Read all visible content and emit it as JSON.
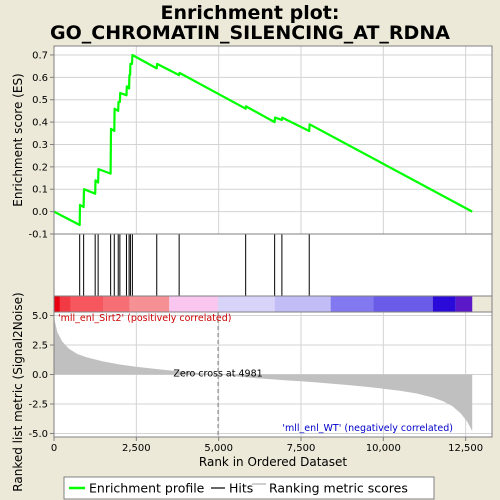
{
  "title_line1": "Enrichment plot:",
  "title_line2": "GO_CHROMATIN_SILENCING_AT_RDNA",
  "chart_data": {
    "type": "line",
    "title": "Enrichment plot: GO_CHROMATIN_SILENCING_AT_RDNA",
    "xlabel": "Rank in Ordered Dataset",
    "xlim": [
      0,
      13300
    ],
    "x_ticks": [
      0,
      2500,
      5000,
      7500,
      10000,
      12500
    ],
    "x_tick_labels": [
      "0",
      "2,500",
      "5,000",
      "7,500",
      "10,000",
      "12,500"
    ],
    "es_panel": {
      "ylabel": "Enrichment score (ES)",
      "ylim": [
        -0.1,
        0.74
      ],
      "y_ticks": [
        -0.1,
        0.0,
        0.1,
        0.2,
        0.3,
        0.4,
        0.5,
        0.6,
        0.7
      ],
      "y_tick_labels": [
        "-0.1",
        "0.0",
        "0.1",
        "0.2",
        "0.3",
        "0.4",
        "0.5",
        "0.6",
        "0.7"
      ],
      "series_name": "Enrichment profile",
      "color": "#00ff00",
      "points": [
        [
          0,
          0.0
        ],
        [
          780,
          -0.06
        ],
        [
          790,
          0.03
        ],
        [
          900,
          0.02
        ],
        [
          910,
          0.1
        ],
        [
          1250,
          0.08
        ],
        [
          1260,
          0.14
        ],
        [
          1340,
          0.13
        ],
        [
          1350,
          0.19
        ],
        [
          1720,
          0.17
        ],
        [
          1730,
          0.37
        ],
        [
          1830,
          0.36
        ],
        [
          1840,
          0.46
        ],
        [
          1950,
          0.45
        ],
        [
          1960,
          0.49
        ],
        [
          2000,
          0.49
        ],
        [
          2010,
          0.53
        ],
        [
          2200,
          0.52
        ],
        [
          2210,
          0.56
        ],
        [
          2280,
          0.55
        ],
        [
          2290,
          0.61
        ],
        [
          2310,
          0.61
        ],
        [
          2320,
          0.66
        ],
        [
          2370,
          0.66
        ],
        [
          2380,
          0.7
        ],
        [
          3120,
          0.64
        ],
        [
          3130,
          0.66
        ],
        [
          3800,
          0.61
        ],
        [
          3810,
          0.62
        ],
        [
          5820,
          0.46
        ],
        [
          5830,
          0.47
        ],
        [
          6700,
          0.4
        ],
        [
          6710,
          0.42
        ],
        [
          6920,
          0.41
        ],
        [
          6930,
          0.42
        ],
        [
          7750,
          0.36
        ],
        [
          7760,
          0.39
        ],
        [
          12700,
          0.0
        ]
      ]
    },
    "hits": [
      780,
      900,
      1250,
      1340,
      1720,
      1830,
      1950,
      2000,
      2200,
      2280,
      2320,
      2380,
      3120,
      3800,
      5820,
      6700,
      6920,
      7750
    ],
    "hits_label": "Hits",
    "ranking_bar": {
      "segments": [
        {
          "start": 0,
          "end": 180,
          "color": "#e8000e"
        },
        {
          "start": 180,
          "end": 500,
          "color": "#f23a44"
        },
        {
          "start": 500,
          "end": 1500,
          "color": "#f6575f"
        },
        {
          "start": 1500,
          "end": 2300,
          "color": "#f66f75"
        },
        {
          "start": 2300,
          "end": 3500,
          "color": "#f59095"
        },
        {
          "start": 3500,
          "end": 4981,
          "color": "#f9c6f0"
        },
        {
          "start": 4981,
          "end": 6700,
          "color": "#d8d4f9"
        },
        {
          "start": 6700,
          "end": 8400,
          "color": "#c2bcf7"
        },
        {
          "start": 8400,
          "end": 9700,
          "color": "#8278f0"
        },
        {
          "start": 9700,
          "end": 11500,
          "color": "#6a5ce8"
        },
        {
          "start": 11500,
          "end": 12200,
          "color": "#2a0ad9"
        },
        {
          "start": 12200,
          "end": 12700,
          "color": "#5a18c9"
        }
      ]
    },
    "metric_panel": {
      "ylabel": "Ranked list metric (Signal2Noise)",
      "ylim": [
        -5.3,
        5.3
      ],
      "y_ticks": [
        -5.0,
        -2.5,
        0.0,
        2.5,
        5.0
      ],
      "y_tick_labels": [
        "-5.0",
        "-2.5",
        "0.0",
        "2.5",
        "5.0"
      ],
      "series_name": "Ranking metric scores",
      "color": "#c0c0c0",
      "curve": [
        [
          0,
          4.8
        ],
        [
          100,
          3.6
        ],
        [
          250,
          2.8
        ],
        [
          450,
          2.2
        ],
        [
          700,
          1.75
        ],
        [
          1000,
          1.45
        ],
        [
          1500,
          1.1
        ],
        [
          2000,
          0.85
        ],
        [
          2500,
          0.65
        ],
        [
          3000,
          0.5
        ],
        [
          3500,
          0.35
        ],
        [
          4000,
          0.22
        ],
        [
          4500,
          0.1
        ],
        [
          4981,
          0.0
        ],
        [
          5500,
          -0.15
        ],
        [
          6000,
          -0.28
        ],
        [
          6500,
          -0.38
        ],
        [
          7000,
          -0.48
        ],
        [
          7500,
          -0.58
        ],
        [
          8000,
          -0.68
        ],
        [
          8500,
          -0.8
        ],
        [
          9000,
          -0.92
        ],
        [
          9500,
          -1.05
        ],
        [
          10000,
          -1.2
        ],
        [
          10500,
          -1.38
        ],
        [
          11000,
          -1.6
        ],
        [
          11500,
          -1.95
        ],
        [
          11800,
          -2.25
        ],
        [
          12100,
          -2.7
        ],
        [
          12350,
          -3.3
        ],
        [
          12550,
          -4.0
        ],
        [
          12700,
          -4.8
        ]
      ],
      "zero_cross_label": "Zero cross at 4981",
      "zero_cross": 4981,
      "pos_label": "'mll_enl_Sirt2' (positively correlated)",
      "neg_label": "'mll_enl_WT' (negatively correlated)"
    },
    "legend": {
      "placement": "bottom",
      "items": [
        "Enrichment profile",
        "Hits",
        "Ranking metric scores"
      ]
    },
    "grid": true
  },
  "colors": {
    "background": "#ece9d8",
    "pos_label": "#cc0000",
    "neg_label": "#0000cc",
    "grid": "#d3d3d3"
  }
}
